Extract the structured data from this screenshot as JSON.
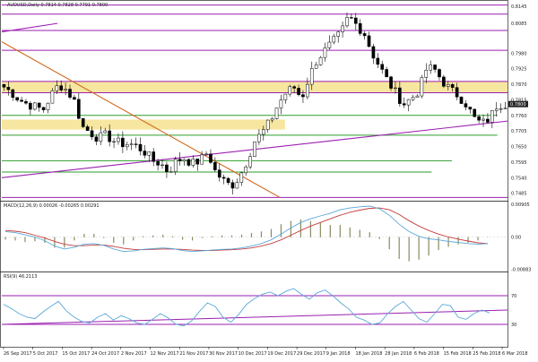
{
  "header": {
    "symbol_line": "AUDUSD,Daily  0.7814 0.7828 0.7791 0.7800"
  },
  "colors": {
    "background": "#ffffff",
    "candle_up": "#ffffff",
    "candle_down": "#000000",
    "candle_outline": "#000000",
    "support_resistance": "#9b1fb0",
    "green_levels": "#2e9e2e",
    "orange_trend": "#d2691e",
    "zone_fill": "#f6e6a0",
    "macd_signal": "#c43c3c",
    "macd_main": "#5aa7d8",
    "macd_hist": "#8a8a60",
    "rsi_line": "#5aa7d8",
    "rsi_levels": "#9b1fb0",
    "grid": "#cfcfcf"
  },
  "chart_data": [
    {
      "type": "candlestick",
      "panel": "price",
      "title": "AUDUSD,Daily  0.7814 0.7828 0.7791 0.7800",
      "ylim": [
        0.7465,
        0.8155
      ],
      "y_ticks": [
        "0.8145",
        "0.8085",
        "0.7980",
        "0.7925",
        "0.7870",
        "0.7815",
        "0.7760",
        "0.7705",
        "0.7650",
        "0.7595",
        "0.7540",
        "0.7485"
      ],
      "current_price_label": "0.7800",
      "x_labels": [
        "26 Sep 2017",
        "5 Oct 2017",
        "15 Oct 2017",
        "24 Oct 2017",
        "2 Nov 2017",
        "12 Nov 2017",
        "21 Nov 2017",
        "30 Nov 2017",
        "10 Dec 2017",
        "19 Dec 2017",
        "29 Dec 2017",
        "9 Jan 2018",
        "18 Jan 2018",
        "28 Jan 2018",
        "6 Feb 2018",
        "15 Feb 2018",
        "25 Feb 2018",
        "6 Mar 2018"
      ],
      "n_bars": 115,
      "close_path": [
        0.786,
        0.784,
        0.7815,
        0.78,
        0.779,
        0.778,
        0.783,
        0.787,
        0.785,
        0.781,
        0.772,
        0.77,
        0.768,
        0.769,
        0.767,
        0.766,
        0.766,
        0.765,
        0.763,
        0.76,
        0.759,
        0.756,
        0.76,
        0.761,
        0.759,
        0.76,
        0.763,
        0.756,
        0.753,
        0.751,
        0.754,
        0.76,
        0.767,
        0.77,
        0.774,
        0.78,
        0.784,
        0.786,
        0.782,
        0.79,
        0.796,
        0.799,
        0.802,
        0.805,
        0.811,
        0.808,
        0.805,
        0.798,
        0.793,
        0.788,
        0.784,
        0.78,
        0.782,
        0.785,
        0.793,
        0.792,
        0.788,
        0.785,
        0.783,
        0.78,
        0.775,
        0.773,
        0.775,
        0.78,
        0.78
      ],
      "horizontal_levels": [
        {
          "price": 0.815,
          "color_key": "support_resistance"
        },
        {
          "price": 0.8118,
          "color_key": "support_resistance"
        },
        {
          "price": 0.806,
          "color_key": "support_resistance"
        },
        {
          "price": 0.799,
          "color_key": "support_resistance"
        },
        {
          "price": 0.788,
          "color_key": "support_resistance"
        },
        {
          "price": 0.784,
          "color_key": "support_resistance"
        },
        {
          "price": 0.776,
          "color_key": "green_levels",
          "x_end_frac": 0.98
        },
        {
          "price": 0.769,
          "color_key": "green_levels",
          "x_end_frac": 0.98
        },
        {
          "price": 0.76,
          "color_key": "green_levels",
          "x_end_frac": 0.89
        },
        {
          "price": 0.756,
          "color_key": "green_levels",
          "x_end_frac": 0.85
        },
        {
          "price": 0.747,
          "color_key": "support_resistance"
        }
      ],
      "zones": [
        {
          "from": 0.784,
          "to": 0.788,
          "x_end_frac": 1.0
        },
        {
          "from": 0.771,
          "to": 0.7745,
          "x_end_frac": 0.56
        }
      ],
      "trendlines": [
        {
          "x0_frac": 0.0,
          "y0": 0.802,
          "x1_frac": 0.55,
          "y1": 0.747,
          "color_key": "orange_trend"
        },
        {
          "x0_frac": 0.0,
          "y0": 0.754,
          "x1_frac": 1.0,
          "y1": 0.774,
          "color_key": "support_resistance"
        },
        {
          "x0_frac": 0.0,
          "y0": 0.8055,
          "x1_frac": 0.11,
          "y1": 0.8085,
          "color_key": "support_resistance"
        }
      ]
    },
    {
      "type": "macd",
      "panel": "macd",
      "title": "MACD(12,26,9) 0.00026 -0.00265 0.00291",
      "y_ticks": [
        "0.00905",
        "0.00",
        "-0.00883"
      ],
      "ylim": [
        -0.009,
        0.009
      ],
      "main": [
        0.0015,
        0.0012,
        0.0006,
        0.0,
        -0.001,
        -0.0025,
        -0.0033,
        -0.0028,
        -0.002,
        -0.0018,
        -0.0023,
        -0.0033,
        -0.004,
        -0.0038,
        -0.0034,
        -0.0032,
        -0.003,
        -0.0032,
        -0.0037,
        -0.004,
        -0.0038,
        -0.0036,
        -0.0034,
        -0.0033,
        -0.003,
        -0.0025,
        -0.0018,
        -0.0008,
        0.0008,
        0.0025,
        0.004,
        0.005,
        0.0058,
        0.0065,
        0.0075,
        0.008,
        0.0083,
        0.0085,
        0.0078,
        0.006,
        0.0035,
        0.0015,
        0.0002,
        -0.0005,
        -0.0008,
        -0.0012,
        -0.0015,
        -0.0018,
        -0.002,
        -0.0018
      ],
      "signal": [
        0.0018,
        0.0016,
        0.0012,
        0.0005,
        -0.0003,
        -0.0012,
        -0.002,
        -0.0024,
        -0.0024,
        -0.0022,
        -0.0022,
        -0.0026,
        -0.0031,
        -0.0034,
        -0.0035,
        -0.0034,
        -0.0033,
        -0.0033,
        -0.0034,
        -0.0036,
        -0.0037,
        -0.0037,
        -0.0036,
        -0.0035,
        -0.0033,
        -0.003,
        -0.0025,
        -0.0018,
        -0.0008,
        0.0005,
        0.0018,
        0.003,
        0.004,
        0.005,
        0.006,
        0.0068,
        0.0074,
        0.0079,
        0.008,
        0.0075,
        0.0062,
        0.0045,
        0.003,
        0.0018,
        0.0008,
        0.0,
        -0.0006,
        -0.0011,
        -0.0016,
        -0.0018
      ]
    },
    {
      "type": "rsi",
      "panel": "rsi",
      "title": "RSI(9) 46.2113",
      "y_ticks": [
        "70",
        "30"
      ],
      "ylim": [
        0,
        100
      ],
      "levels": [
        70,
        30
      ],
      "values": [
        58,
        52,
        45,
        40,
        38,
        47,
        55,
        62,
        49,
        40,
        34,
        32,
        40,
        45,
        36,
        42,
        38,
        32,
        30,
        37,
        45,
        39,
        30,
        28,
        35,
        48,
        60,
        55,
        40,
        33,
        44,
        58,
        66,
        72,
        75,
        70,
        76,
        80,
        72,
        65,
        74,
        78,
        70,
        60,
        52,
        40,
        36,
        30,
        32,
        45,
        55,
        62,
        50,
        38,
        33,
        45,
        58,
        56,
        40,
        37,
        45,
        50,
        46
      ],
      "trendline": {
        "x0_frac": 0.0,
        "y0": 30,
        "x1_frac": 1.0,
        "y1": 50
      }
    }
  ]
}
